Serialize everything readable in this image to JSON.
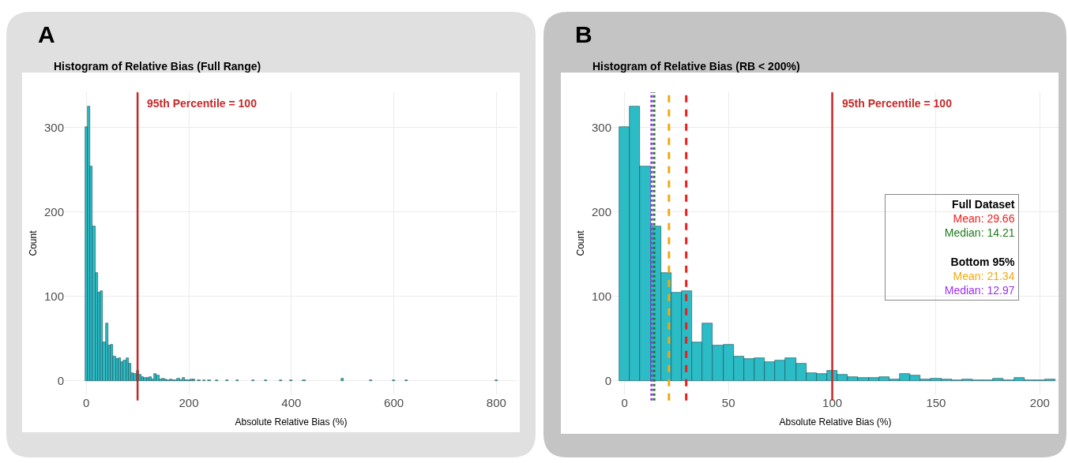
{
  "chart_data": [
    {
      "type": "histogram",
      "title": "Histogram of Relative Bias (Full Range)",
      "xlabel": "Absolute Relative Bias (%)",
      "ylabel": "Count",
      "color": "#2bbcc6",
      "annotations": [
        "A"
      ],
      "bins": [
        -2.5,
        2.5,
        7.5,
        12.5,
        17.5,
        22.5,
        27.5,
        32.5,
        37.5,
        42.5,
        47.5,
        52.5,
        57.5,
        62.5,
        67.5,
        72.5,
        77.5,
        82.5,
        87.5,
        92.5,
        97.5,
        102.5,
        107.5,
        112.5,
        117.5,
        122.5,
        127.5,
        132.5,
        137.5,
        142.5,
        147.5,
        152.5,
        157.5,
        162.5,
        167.5,
        172.5,
        177.5,
        182.5,
        187.5,
        192.5,
        197.5,
        202.5,
        207.5,
        212.5,
        217.5,
        222.5,
        227.5,
        232.5,
        237.5,
        242.5,
        252.5,
        257.5,
        272.5,
        277.5,
        292.5,
        297.5,
        322.5,
        327.5,
        347.5,
        352.5,
        377.5,
        382.5,
        397.5,
        402.5,
        422.5,
        427.5,
        497.5,
        502.5,
        552.5,
        557.5,
        597.5,
        602.5,
        622.5,
        627.5,
        797.5,
        802.5
      ],
      "values": [
        301,
        325,
        254,
        183,
        128,
        105,
        106,
        46,
        68,
        42,
        43,
        29,
        26,
        27,
        22,
        24,
        27,
        20,
        9,
        8,
        12,
        7,
        5,
        4,
        4,
        5,
        2,
        8,
        6,
        2,
        3,
        2,
        1,
        2,
        1,
        1,
        3,
        1,
        4,
        1,
        1,
        2,
        2,
        null,
        1,
        null,
        1,
        null,
        1,
        null,
        1,
        null,
        1,
        null,
        1,
        null,
        1,
        null,
        1,
        null,
        1,
        null,
        1,
        null,
        1,
        null,
        3,
        null,
        1,
        null,
        1,
        null,
        1,
        null,
        1
      ],
      "xlim": [
        -42,
        841
      ],
      "xticks": [
        0,
        200,
        400,
        600,
        800
      ],
      "ylim": [
        -16,
        342
      ],
      "yticks": [
        0,
        100,
        200,
        300
      ],
      "grid": true,
      "ref_lines": [
        {
          "axis": "x",
          "value": 100,
          "label": "95th Percentile = 100",
          "color": "#c62828",
          "line_style": "solid"
        }
      ]
    },
    {
      "type": "histogram",
      "title": "Histogram of Relative Bias (RB < 200%)",
      "xlabel": "Absolute Relative Bias (%)",
      "ylabel": "Count",
      "color": "#2bbcc6",
      "annotations": [
        "B",
        "Full Dataset",
        "Bottom 95%"
      ],
      "bins": [
        -2.5,
        2.5,
        7.5,
        12.5,
        17.5,
        22.5,
        27.5,
        32.5,
        37.5,
        42.5,
        47.5,
        52.5,
        57.5,
        62.5,
        67.5,
        72.5,
        77.5,
        82.5,
        87.5,
        92.5,
        97.5,
        102.5,
        107.5,
        112.5,
        117.5,
        122.5,
        127.5,
        132.5,
        137.5,
        142.5,
        147.5,
        152.5,
        157.5,
        162.5,
        167.5,
        172.5,
        177.5,
        182.5,
        187.5,
        192.5,
        197.5,
        202.5,
        207.5
      ],
      "values": [
        301,
        325,
        254,
        183,
        128,
        105,
        106,
        46,
        68,
        42,
        43,
        29,
        26,
        27,
        22,
        24,
        27,
        20,
        9,
        8,
        12,
        7,
        5,
        4,
        4,
        5,
        2,
        8,
        6,
        2,
        3,
        2,
        1,
        2,
        1,
        1,
        3,
        1,
        4,
        1,
        1,
        2
      ],
      "xlim": [
        -6,
        209
      ],
      "xticks": [
        0,
        50,
        100,
        150,
        200
      ],
      "ylim": [
        -16,
        342
      ],
      "yticks": [
        0,
        100,
        200,
        300
      ],
      "grid": true,
      "ref_lines": [
        {
          "axis": "x",
          "value": 100,
          "label": "95th Percentile = 100",
          "color": "#c62828",
          "line_style": "solid"
        },
        {
          "axis": "x",
          "value": 29.66,
          "label": "Mean: 29.66",
          "color": "#ee1c1c",
          "line_style": "dashed"
        },
        {
          "axis": "x",
          "value": 14.21,
          "label": "Median: 14.21",
          "color": "#1e7b1e",
          "line_style": "dotted"
        },
        {
          "axis": "x",
          "value": 21.34,
          "label": "Mean: 21.34",
          "color": "#f2a90f",
          "line_style": "dashed"
        },
        {
          "axis": "x",
          "value": 12.97,
          "label": "Median: 12.97",
          "color": "#9b30f0",
          "line_style": "dotted"
        }
      ]
    }
  ]
}
